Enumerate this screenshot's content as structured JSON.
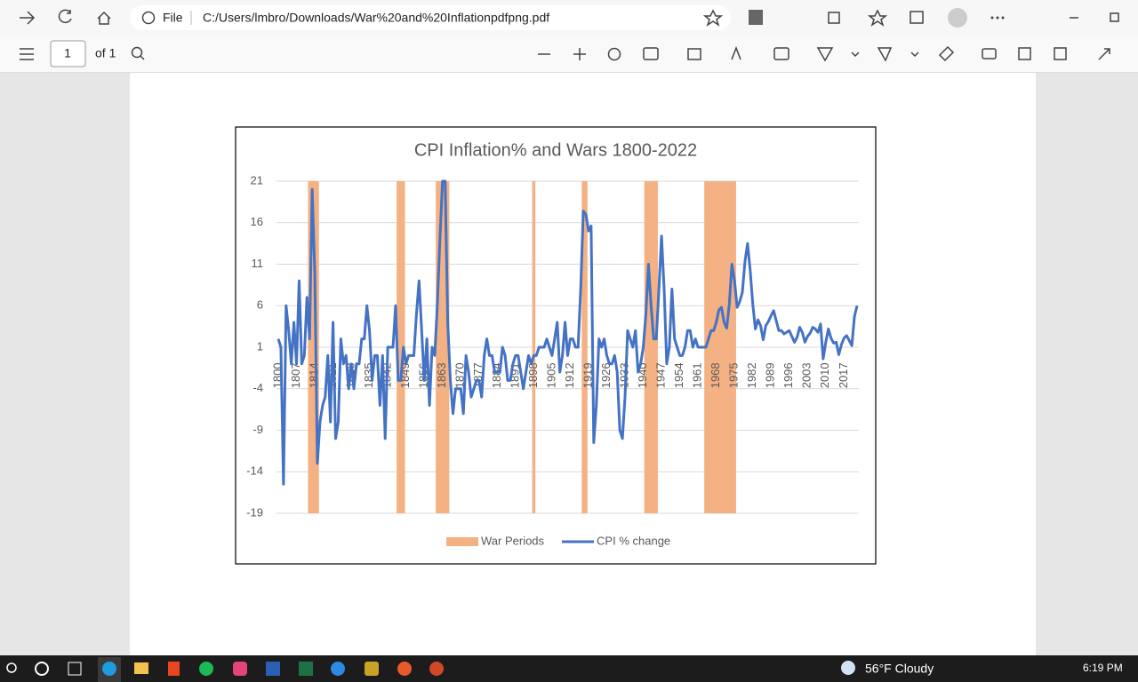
{
  "browser": {
    "scheme": "File",
    "url": "C:/Users/lmbro/Downloads/War%20and%20Inflationpdfpng.pdf"
  },
  "viewer": {
    "page": "1",
    "page_count": "of 1"
  },
  "taskbar": {
    "weather": "56°F  Cloudy",
    "time": "6:19 PM"
  },
  "chart_data": {
    "type": "line",
    "title": "CPI Inflation%  and Wars 1800-2022",
    "x": [
      1800,
      1801,
      1802,
      1803,
      1804,
      1805,
      1806,
      1807,
      1808,
      1809,
      1810,
      1811,
      1812,
      1813,
      1814,
      1815,
      1816,
      1817,
      1818,
      1819,
      1820,
      1821,
      1822,
      1823,
      1824,
      1825,
      1826,
      1827,
      1828,
      1829,
      1830,
      1831,
      1832,
      1833,
      1834,
      1835,
      1836,
      1837,
      1838,
      1839,
      1840,
      1841,
      1842,
      1843,
      1844,
      1845,
      1846,
      1847,
      1848,
      1849,
      1850,
      1851,
      1852,
      1853,
      1854,
      1855,
      1856,
      1857,
      1858,
      1859,
      1860,
      1861,
      1862,
      1863,
      1864,
      1865,
      1866,
      1867,
      1868,
      1869,
      1870,
      1871,
      1872,
      1873,
      1874,
      1875,
      1876,
      1877,
      1878,
      1879,
      1880,
      1881,
      1882,
      1883,
      1884,
      1885,
      1886,
      1887,
      1888,
      1889,
      1890,
      1891,
      1892,
      1893,
      1894,
      1895,
      1896,
      1897,
      1898,
      1899,
      1900,
      1901,
      1902,
      1903,
      1904,
      1905,
      1906,
      1907,
      1908,
      1909,
      1910,
      1911,
      1912,
      1913,
      1914,
      1915,
      1916,
      1917,
      1918,
      1919,
      1920,
      1921,
      1922,
      1923,
      1924,
      1925,
      1926,
      1927,
      1928,
      1929,
      1930,
      1931,
      1932,
      1933,
      1934,
      1935,
      1936,
      1937,
      1938,
      1939,
      1940,
      1941,
      1942,
      1943,
      1944,
      1945,
      1946,
      1947,
      1948,
      1949,
      1950,
      1951,
      1952,
      1953,
      1954,
      1955,
      1956,
      1957,
      1958,
      1959,
      1960,
      1961,
      1962,
      1963,
      1964,
      1965,
      1966,
      1967,
      1968,
      1969,
      1970,
      1971,
      1972,
      1973,
      1974,
      1975,
      1976,
      1977,
      1978,
      1979,
      1980,
      1981,
      1982,
      1983,
      1984,
      1985,
      1986,
      1987,
      1988,
      1989,
      1990,
      1991,
      1992,
      1993,
      1994,
      1995,
      1996,
      1997,
      1998,
      1999,
      2000,
      2001,
      2002,
      2003,
      2004,
      2005,
      2006,
      2007,
      2008,
      2009,
      2010,
      2011,
      2012,
      2013,
      2014,
      2015,
      2016,
      2017,
      2018,
      2019,
      2020,
      2021,
      2022
    ],
    "xlim": [
      1800,
      2022
    ],
    "xticks": [
      1800,
      1807,
      1814,
      1821,
      1828,
      1835,
      1842,
      1849,
      1856,
      1863,
      1870,
      1877,
      1884,
      1891,
      1898,
      1905,
      1912,
      1919,
      1926,
      1933,
      1940,
      1947,
      1954,
      1961,
      1968,
      1975,
      1982,
      1989,
      1996,
      2003,
      2010,
      2017
    ],
    "ylim": [
      -19,
      21
    ],
    "yticks": [
      21,
      16,
      11,
      6,
      1,
      -4,
      -9,
      -14,
      -19
    ],
    "grid": true,
    "legend": "bottom",
    "series": [
      {
        "name": "War Periods",
        "type": "bar",
        "color": "#f4b183",
        "values": [
          null,
          null,
          null,
          null,
          null,
          null,
          null,
          null,
          null,
          null,
          null,
          null,
          21,
          21,
          21,
          21,
          null,
          null,
          null,
          null,
          null,
          null,
          null,
          null,
          null,
          null,
          null,
          null,
          null,
          null,
          null,
          null,
          null,
          null,
          null,
          null,
          null,
          null,
          null,
          null,
          null,
          null,
          null,
          null,
          null,
          null,
          21,
          21,
          21,
          null,
          null,
          null,
          null,
          null,
          null,
          null,
          null,
          null,
          null,
          null,
          null,
          21,
          21,
          21,
          21,
          21,
          null,
          null,
          null,
          null,
          null,
          null,
          null,
          null,
          null,
          null,
          null,
          null,
          null,
          null,
          null,
          null,
          null,
          null,
          null,
          null,
          null,
          null,
          null,
          null,
          null,
          null,
          null,
          null,
          null,
          null,
          null,
          null,
          21,
          null,
          null,
          null,
          null,
          null,
          null,
          null,
          null,
          null,
          null,
          null,
          null,
          null,
          null,
          null,
          null,
          null,
          null,
          21,
          21,
          null,
          null,
          null,
          null,
          null,
          null,
          null,
          null,
          null,
          null,
          null,
          null,
          null,
          null,
          null,
          null,
          null,
          null,
          null,
          null,
          null,
          null,
          21,
          21,
          21,
          21,
          21,
          null,
          null,
          null,
          null,
          null,
          null,
          null,
          null,
          null,
          null,
          null,
          null,
          null,
          null,
          null,
          null,
          null,
          null,
          21,
          21,
          21,
          21,
          21,
          21,
          21,
          21,
          21,
          21,
          21,
          21,
          null,
          null,
          null,
          null,
          null,
          null,
          null,
          null,
          null,
          null,
          null,
          null,
          null,
          null,
          null,
          null,
          null,
          null,
          null,
          null,
          null,
          null,
          null,
          null,
          null,
          null,
          null,
          null,
          null,
          null,
          null,
          null,
          null,
          null,
          null,
          null,
          null,
          null,
          null,
          null,
          null,
          null,
          null,
          null,
          null,
          null,
          null
        ]
      },
      {
        "name": "CPI % change",
        "type": "line",
        "color": "#4472c4",
        "values": [
          2,
          1,
          -15.5,
          6,
          3,
          -1,
          4,
          -1,
          9,
          -1,
          0,
          7,
          2,
          20,
          10,
          -13,
          -8,
          -6,
          -5,
          0,
          -8,
          4,
          -10,
          -8,
          2,
          -1,
          0,
          -4,
          -1,
          -4,
          -1,
          -1,
          2,
          2,
          6,
          3,
          -3,
          0,
          0,
          -6,
          0,
          -10,
          1,
          1,
          1,
          6,
          -3,
          -3,
          1,
          -1,
          0,
          0,
          0,
          5,
          9,
          3,
          -3,
          2,
          -6,
          1,
          0,
          6,
          14,
          21,
          21,
          4,
          -3,
          -7,
          -4,
          -4,
          -4,
          -7,
          0,
          -2,
          -5,
          -4,
          -3,
          -3,
          -5,
          0,
          2,
          0,
          0,
          -2,
          -2,
          -2,
          1,
          0,
          -3,
          -3,
          -1,
          0,
          0,
          -2,
          -4,
          -2,
          0,
          -1,
          0,
          0,
          1,
          1,
          1,
          2,
          1,
          0,
          2,
          4,
          -2,
          0,
          4,
          0,
          2,
          2,
          1,
          1,
          8,
          17.4,
          17,
          15,
          15.6,
          -10.5,
          -6,
          2,
          1,
          2,
          0,
          -1,
          -1,
          0,
          -2,
          -9,
          -10,
          -5,
          3,
          2,
          1,
          3,
          -2,
          -1,
          1,
          5,
          11,
          6,
          2,
          2,
          8,
          14.4,
          8,
          -1,
          1,
          8,
          2,
          1,
          0,
          0,
          1,
          3,
          3,
          1,
          2,
          1,
          1,
          1,
          1,
          2,
          3,
          3,
          4,
          5.5,
          5.8,
          4,
          3.3,
          6.2,
          11,
          9,
          5.8,
          6.5,
          7.6,
          11.3,
          13.5,
          10.3,
          6.2,
          3.2,
          4.3,
          3.6,
          1.9,
          3.6,
          4.1,
          4.8,
          5.4,
          4.2,
          3,
          3,
          2.6,
          2.8,
          3,
          2.3,
          1.6,
          2.2,
          3.4,
          2.8,
          1.6,
          2.3,
          2.7,
          3.4,
          3.2,
          2.8,
          3.8,
          -0.4,
          1.6,
          3.2,
          2.1,
          1.5,
          1.6,
          0.1,
          1.3,
          2.1,
          2.4,
          1.8,
          1.2,
          4.7,
          6
        ]
      }
    ]
  }
}
